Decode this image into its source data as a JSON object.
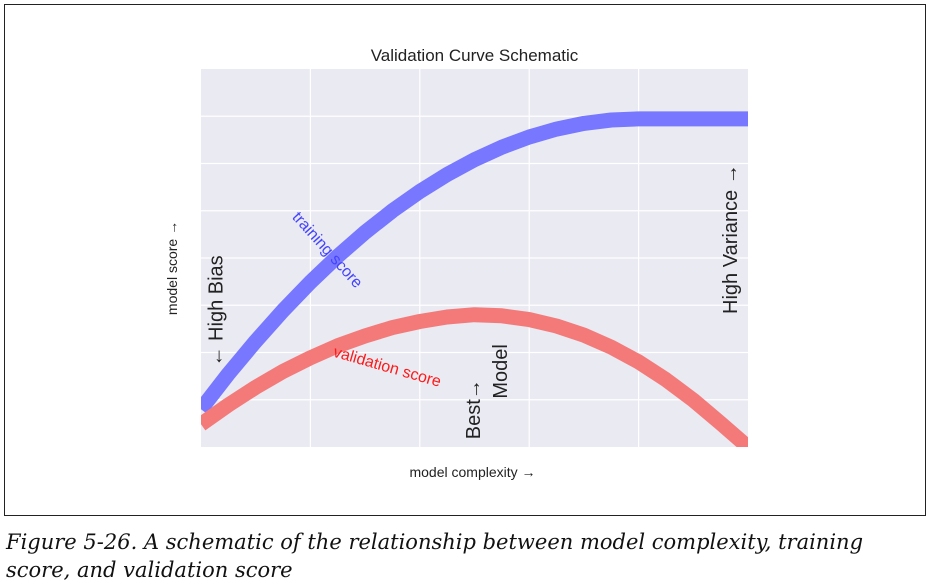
{
  "chart_data": {
    "type": "line",
    "title": "Validation Curve Schematic",
    "xlabel": "model complexity →",
    "ylabel": "model score →",
    "xlim": [
      0,
      1
    ],
    "ylim": [
      0,
      1
    ],
    "grid": true,
    "series": [
      {
        "name": "training score",
        "color": "#7777ff",
        "x": [
          0.0,
          0.05,
          0.1,
          0.15,
          0.2,
          0.25,
          0.3,
          0.35,
          0.4,
          0.45,
          0.5,
          0.55,
          0.6,
          0.65,
          0.7,
          0.75,
          0.8,
          0.85,
          0.9,
          0.95,
          1.0
        ],
        "y": [
          0.1,
          0.193,
          0.28,
          0.361,
          0.436,
          0.505,
          0.568,
          0.625,
          0.676,
          0.721,
          0.76,
          0.793,
          0.82,
          0.841,
          0.856,
          0.865,
          0.868,
          0.868,
          0.868,
          0.868,
          0.868
        ]
      },
      {
        "name": "validation score",
        "color": "#f47a7a",
        "x": [
          0.0,
          0.05,
          0.1,
          0.15,
          0.2,
          0.25,
          0.3,
          0.35,
          0.4,
          0.45,
          0.5,
          0.55,
          0.6,
          0.65,
          0.7,
          0.75,
          0.8,
          0.85,
          0.9,
          0.95,
          1.0
        ],
        "y": [
          0.06,
          0.111,
          0.158,
          0.2,
          0.236,
          0.268,
          0.294,
          0.316,
          0.332,
          0.344,
          0.35,
          0.347,
          0.337,
          0.32,
          0.296,
          0.264,
          0.225,
          0.178,
          0.124,
          0.063,
          0.0
        ]
      }
    ],
    "annotations": [
      {
        "text": "← High Bias",
        "x": 0.03,
        "y": 0.36,
        "rotation": 90
      },
      {
        "text": "High Variance →",
        "x": 0.97,
        "y": 0.55,
        "rotation": 90
      },
      {
        "text": "Best→",
        "x": 0.5,
        "y": 0.1,
        "rotation": 90
      },
      {
        "text": "Model",
        "x": 0.55,
        "y": 0.2,
        "rotation": 90
      },
      {
        "text": "training score",
        "x": 0.23,
        "y": 0.52,
        "rotation": -48
      },
      {
        "text": "validation score",
        "x": 0.34,
        "y": 0.21,
        "rotation": -16
      }
    ]
  },
  "caption": "Figure 5-26. A schematic of the relationship between model complexity, training score, and validation score"
}
